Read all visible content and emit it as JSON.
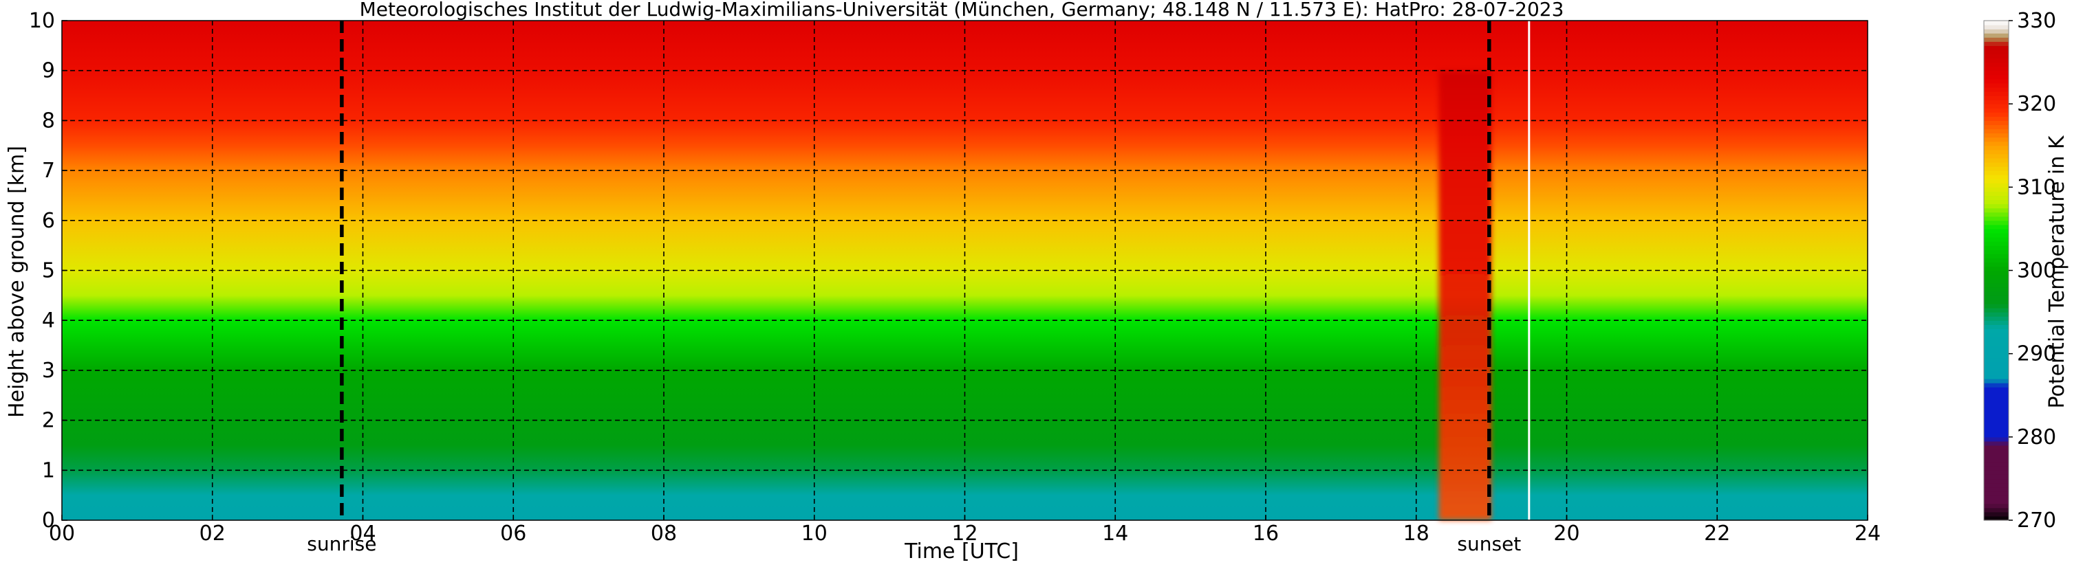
{
  "chart_data": {
    "type": "heatmap",
    "title": "Meteorologisches Institut der Ludwig-Maximilians-Universität (München, Germany; 48.148 N / 11.573 E):    HatPro: 28-07-2023",
    "xlabel": "Time [UTC]",
    "ylabel": "Height above ground [km]",
    "colorbar_label": "Potential Temperature in K",
    "xlim": [
      0,
      24
    ],
    "ylim": [
      0,
      10
    ],
    "x_ticks": [
      0,
      2,
      4,
      6,
      8,
      10,
      12,
      14,
      16,
      18,
      20,
      22,
      24
    ],
    "x_tick_labels": [
      "00",
      "02",
      "04",
      "06",
      "08",
      "10",
      "12",
      "14",
      "16",
      "18",
      "20",
      "22",
      "24"
    ],
    "y_ticks": [
      0,
      1,
      2,
      3,
      4,
      5,
      6,
      7,
      8,
      9,
      10
    ],
    "y_tick_labels": [
      "0",
      "1",
      "2",
      "3",
      "4",
      "5",
      "6",
      "7",
      "8",
      "9",
      "10"
    ],
    "grid": true,
    "colorbar": {
      "range": [
        270,
        330
      ],
      "ticks": [
        270,
        280,
        290,
        300,
        310,
        320,
        330
      ],
      "tick_labels": [
        "270",
        "280",
        "290",
        "300",
        "310",
        "320",
        "330"
      ],
      "stops": [
        {
          "value": 270,
          "color": "#000000"
        },
        {
          "value": 272,
          "color": "#5e0b45"
        },
        {
          "value": 279,
          "color": "#5e0b45"
        },
        {
          "value": 280,
          "color": "#0a1ccc"
        },
        {
          "value": 286,
          "color": "#0a1ccc"
        },
        {
          "value": 287,
          "color": "#00a0b0"
        },
        {
          "value": 293,
          "color": "#00a8a8"
        },
        {
          "value": 296,
          "color": "#009a18"
        },
        {
          "value": 300,
          "color": "#00a800"
        },
        {
          "value": 305,
          "color": "#00e400"
        },
        {
          "value": 308,
          "color": "#b8f000"
        },
        {
          "value": 311,
          "color": "#f4e400"
        },
        {
          "value": 315,
          "color": "#ffa000"
        },
        {
          "value": 319,
          "color": "#ff3000"
        },
        {
          "value": 323,
          "color": "#e60000"
        },
        {
          "value": 327,
          "color": "#c80000"
        },
        {
          "value": 328,
          "color": "#b09050"
        },
        {
          "value": 329,
          "color": "#e8e0d8"
        },
        {
          "value": 330,
          "color": "#ffffff"
        }
      ]
    },
    "vertical_profile": {
      "height_km": [
        0,
        0.5,
        1,
        1.5,
        2,
        3,
        4,
        4.5,
        5,
        6,
        7,
        7.5,
        8,
        9,
        10
      ],
      "theta_K": [
        291,
        293,
        295,
        297,
        298,
        300,
        305,
        308,
        310,
        313,
        316,
        318,
        320,
        322,
        324
      ]
    },
    "events": [
      {
        "label": "sunrise",
        "time": 3.72
      },
      {
        "label": "sunset",
        "time": 18.97
      }
    ],
    "data_gap": {
      "time": 19.5
    },
    "features": [
      {
        "description": "warm well-mixed column",
        "time_start": 18.3,
        "time_end": 19.0,
        "height_top_km": 9
      }
    ]
  }
}
